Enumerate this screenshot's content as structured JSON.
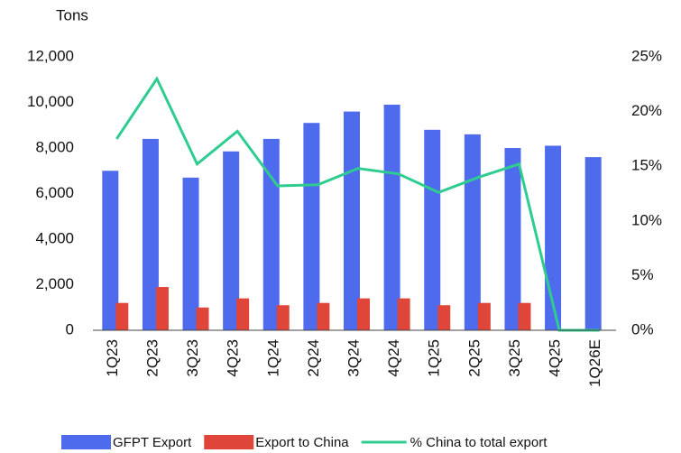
{
  "chart_data": {
    "type": "bar",
    "y_label": "Tons",
    "categories": [
      "1Q23",
      "2Q23",
      "3Q23",
      "4Q23",
      "1Q24",
      "2Q24",
      "3Q24",
      "4Q24",
      "1Q25",
      "2Q25",
      "3Q25",
      "4Q25",
      "1Q26E"
    ],
    "series": [
      {
        "name": "GFPT Export",
        "color": "#4f6bed",
        "values": [
          7000,
          8400,
          6700,
          7850,
          8400,
          9100,
          9600,
          9900,
          8800,
          8600,
          8000,
          8100,
          7600
        ]
      },
      {
        "name": "Export to China",
        "color": "#e0453a",
        "values": [
          1200,
          1900,
          1000,
          1400,
          1100,
          1200,
          1400,
          1400,
          1100,
          1200,
          1200,
          0,
          0
        ]
      },
      {
        "name": "% China to total export",
        "color": "#2ecc8f",
        "type": "line",
        "axis": "y2",
        "values": [
          17.5,
          23,
          15.2,
          18.2,
          13.2,
          13.3,
          14.8,
          14.3,
          12.6,
          14,
          15.2,
          0,
          0
        ]
      }
    ],
    "ylim": [
      0,
      12000
    ],
    "yticks": [
      0,
      {
        "value": 2000,
        "label": "2,000"
      },
      {
        "value": 4000,
        "label": "4,000"
      },
      {
        "value": 6000,
        "label": "6,000"
      },
      {
        "value": 8000,
        "label": "8,000"
      },
      {
        "value": 10000,
        "label": "10,000"
      },
      {
        "value": 12000,
        "label": "12,000"
      }
    ],
    "y2lim": [
      0,
      25
    ],
    "y2ticks": [
      {
        "value": 0,
        "label": "0%"
      },
      {
        "value": 5,
        "label": "5%"
      },
      {
        "value": 10,
        "label": "10%"
      },
      {
        "value": 15,
        "label": "15%"
      },
      {
        "value": 20,
        "label": "20%"
      },
      {
        "value": 25,
        "label": "25%"
      }
    ],
    "grid": false
  }
}
